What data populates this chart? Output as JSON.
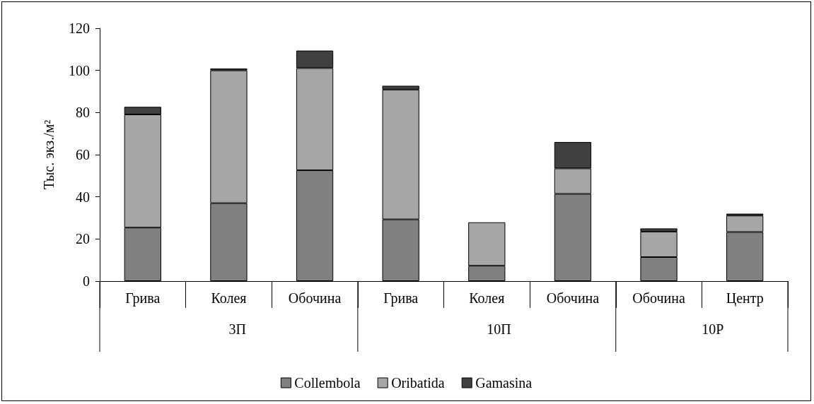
{
  "chart_data": {
    "type": "bar",
    "stacked": true,
    "ylabel": "Тыс. экз./м²",
    "categories": [
      "Грива",
      "Колея",
      "Обочина",
      "Грива",
      "Колея",
      "Обочина",
      "Обочина",
      "Центр"
    ],
    "annotations": [
      "3П",
      "10П",
      "10Р"
    ],
    "series": [
      {
        "name": "Collembola",
        "color": "#808080",
        "values": [
          25.4,
          37.0,
          52.6,
          29.3,
          7.3,
          41.4,
          11.4,
          23.3
        ]
      },
      {
        "name": "Oribatida",
        "color": "#a6a6a6",
        "values": [
          53.7,
          63.0,
          48.5,
          61.6,
          20.6,
          12.1,
          12.1,
          7.8
        ]
      },
      {
        "name": "Gamasina",
        "color": "#404040",
        "values": [
          3.6,
          0.9,
          8.3,
          1.8,
          null,
          12.5,
          1.5,
          0.9
        ]
      }
    ],
    "ylim": [
      0,
      120
    ],
    "yticks": [
      0,
      20,
      40,
      60,
      80,
      100,
      120
    ],
    "grid": false,
    "legend": "bottom"
  }
}
